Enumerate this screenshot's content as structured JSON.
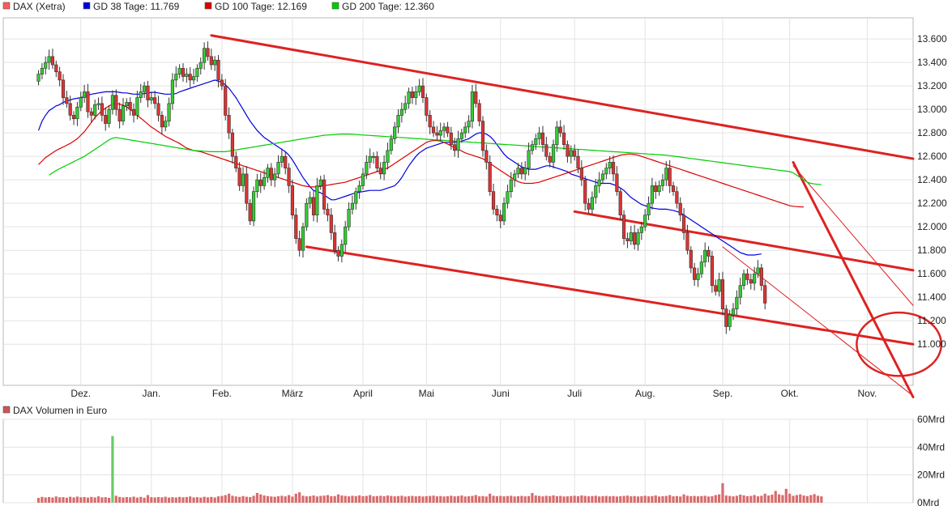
{
  "chart_data": [
    {
      "type": "candlestick",
      "legend": [
        {
          "label": "DAX (Xetra)",
          "color": "#ff5a5a"
        },
        {
          "label": "GD 38 Tage: 11.769",
          "color": "#0000dd"
        },
        {
          "label": "GD 100 Tage: 12.169",
          "color": "#dd0000"
        },
        {
          "label": "GD 200 Tage: 12.360",
          "color": "#00cc00"
        }
      ],
      "legend_position": "top-left",
      "y_ticks": [
        "13.600",
        "13.400",
        "13.200",
        "13.000",
        "12.800",
        "12.600",
        "12.400",
        "12.200",
        "12.000",
        "11.800",
        "11.600",
        "11.400",
        "11.200",
        "11.000"
      ],
      "y_tick_values": [
        13600,
        13400,
        13200,
        13000,
        12800,
        12600,
        12400,
        12200,
        12000,
        11800,
        11600,
        11400,
        11200,
        11000
      ],
      "ylim": [
        10650,
        13780
      ],
      "x_ticks": [
        "Dez.",
        "Jan.",
        "Feb.",
        "März",
        "April",
        "Mai",
        "Juni",
        "Juli",
        "Aug.",
        "Sep.",
        "Okt.",
        "Nov."
      ],
      "x_tick_pos": [
        12,
        32,
        52,
        72,
        92,
        110,
        131,
        152,
        172,
        194,
        213,
        235
      ],
      "xlim": [
        -10,
        248
      ],
      "close": [
        13300,
        13350,
        13400,
        13450,
        13380,
        13320,
        13250,
        13100,
        13050,
        12950,
        12920,
        13020,
        13100,
        13150,
        12980,
        12950,
        13040,
        13050,
        12950,
        12880,
        13000,
        13120,
        13000,
        12900,
        13030,
        13060,
        13000,
        12950,
        13100,
        13150,
        13200,
        13080,
        13100,
        13050,
        12950,
        12850,
        12900,
        13050,
        13250,
        13300,
        13350,
        13280,
        13300,
        13250,
        13280,
        13350,
        13400,
        13520,
        13450,
        13380,
        13420,
        13250,
        13200,
        12950,
        12800,
        12600,
        12500,
        12350,
        12450,
        12200,
        12050,
        12300,
        12400,
        12350,
        12420,
        12500,
        12400,
        12450,
        12550,
        12600,
        12500,
        12350,
        12100,
        11900,
        11800,
        12000,
        12200,
        12250,
        12100,
        12350,
        12400,
        12150,
        12100,
        11950,
        11800,
        11750,
        11850,
        12000,
        12150,
        12200,
        12300,
        12350,
        12450,
        12550,
        12600,
        12600,
        12500,
        12450,
        12550,
        12650,
        12750,
        12850,
        12950,
        13000,
        13050,
        13150,
        13100,
        13150,
        13200,
        13100,
        12950,
        12850,
        12800,
        12780,
        12820,
        12850,
        12800,
        12700,
        12650,
        12750,
        12800,
        12850,
        12900,
        13150,
        13050,
        12900,
        12650,
        12550,
        12300,
        12150,
        12100,
        12050,
        12200,
        12300,
        12400,
        12450,
        12500,
        12450,
        12500,
        12650,
        12700,
        12750,
        12800,
        12700,
        12600,
        12550,
        12700,
        12850,
        12800,
        12700,
        12600,
        12650,
        12600,
        12500,
        12400,
        12200,
        12150,
        12250,
        12350,
        12400,
        12450,
        12500,
        12550,
        12450,
        12300,
        12100,
        11900,
        11880,
        11950,
        11850,
        11950,
        12000,
        12100,
        12200,
        12350,
        12300,
        12350,
        12400,
        12500,
        12350,
        12300,
        12200,
        12100,
        11950,
        11800,
        11650,
        11550,
        11600,
        11700,
        11800,
        11750,
        11500,
        11450,
        11550,
        11300,
        11150,
        11250,
        11300,
        11400,
        11500,
        11600,
        11550,
        11520,
        11600,
        11650,
        11500,
        11350
      ],
      "gd38": [
        12820,
        12900,
        12950,
        12990,
        13010,
        13030,
        13040,
        13060,
        13070,
        13080,
        13090,
        13095,
        13100,
        13110,
        13120,
        13130,
        13135,
        13140,
        13145,
        13150,
        13150,
        13150,
        13150,
        13145,
        13140,
        13140,
        13135,
        13130,
        13130,
        13130,
        13135,
        13140,
        13145,
        13145,
        13140,
        13135,
        13130,
        13130,
        13130,
        13135,
        13150,
        13160,
        13170,
        13180,
        13190,
        13200,
        13210,
        13220,
        13230,
        13240,
        13250,
        13240,
        13230,
        13210,
        13180,
        13140,
        13100,
        13050,
        13000,
        12950,
        12900,
        12860,
        12820,
        12790,
        12760,
        12740,
        12720,
        12700,
        12680,
        12660,
        12640,
        12610,
        12570,
        12520,
        12470,
        12420,
        12380,
        12340,
        12310,
        12300,
        12290,
        12270,
        12250,
        12230,
        12230,
        12240,
        12250,
        12260,
        12270,
        12280,
        12290,
        12295,
        12300,
        12305,
        12310,
        12310,
        12310,
        12310,
        12320,
        12330,
        12340,
        12350,
        12380,
        12420,
        12470,
        12520,
        12560,
        12600,
        12630,
        12650,
        12670,
        12680,
        12690,
        12700,
        12710,
        12720,
        12720,
        12720,
        12720,
        12720,
        12730,
        12740,
        12750,
        12770,
        12790,
        12800,
        12800,
        12790,
        12770,
        12740,
        12700,
        12660,
        12620,
        12590,
        12570,
        12550,
        12530,
        12510,
        12500,
        12490,
        12490,
        12490,
        12500,
        12510,
        12520,
        12520,
        12510,
        12500,
        12490,
        12480,
        12470,
        12450,
        12440,
        12430,
        12420,
        12410,
        12400,
        12390,
        12380,
        12370,
        12370,
        12370,
        12370,
        12360,
        12350,
        12330,
        12310,
        12280,
        12250,
        12230,
        12210,
        12190,
        12180,
        12170,
        12160,
        12155,
        12150,
        12150,
        12150,
        12145,
        12140,
        12130,
        12120,
        12100,
        12080,
        12060,
        12040,
        12020,
        12000,
        11980,
        11960,
        11940,
        11920,
        11900,
        11880,
        11860,
        11840,
        11820,
        11800,
        11780,
        11770,
        11760,
        11760,
        11760,
        11765,
        11769
      ],
      "gd100": [
        12530,
        12560,
        12590,
        12610,
        12630,
        12650,
        12665,
        12680,
        12695,
        12710,
        12730,
        12750,
        12780,
        12810,
        12850,
        12890,
        12930,
        12960,
        12990,
        13010,
        13030,
        13045,
        13050,
        13045,
        13035,
        13020,
        13000,
        12975,
        12950,
        12925,
        12900,
        12875,
        12850,
        12830,
        12810,
        12790,
        12770,
        12755,
        12740,
        12725,
        12710,
        12690,
        12670,
        12660,
        12650,
        12645,
        12640,
        12630,
        12620,
        12610,
        12600,
        12590,
        12580,
        12570,
        12560,
        12550,
        12540,
        12530,
        12520,
        12510,
        12500,
        12490,
        12480,
        12470,
        12460,
        12450,
        12440,
        12430,
        12420,
        12410,
        12400,
        12390,
        12380,
        12370,
        12360,
        12350,
        12345,
        12340,
        12340,
        12340,
        12345,
        12350,
        12355,
        12360,
        12365,
        12370,
        12375,
        12380,
        12390,
        12400,
        12410,
        12420,
        12430,
        12440,
        12450,
        12460,
        12470,
        12480,
        12490,
        12500,
        12520,
        12540,
        12560,
        12580,
        12600,
        12620,
        12640,
        12660,
        12680,
        12700,
        12720,
        12730,
        12735,
        12735,
        12730,
        12720,
        12705,
        12690,
        12675,
        12660,
        12645,
        12630,
        12620,
        12610,
        12600,
        12590,
        12580,
        12560,
        12540,
        12520,
        12500,
        12480,
        12460,
        12440,
        12420,
        12400,
        12385,
        12375,
        12370,
        12370,
        12370,
        12375,
        12380,
        12390,
        12400,
        12410,
        12420,
        12430,
        12440,
        12450,
        12460,
        12470,
        12480,
        12490,
        12500,
        12510,
        12520,
        12530,
        12540,
        12550,
        12560,
        12570,
        12580,
        12590,
        12600,
        12610,
        12615,
        12620,
        12620,
        12615,
        12610,
        12600,
        12590,
        12580,
        12570,
        12560,
        12550,
        12540,
        12530,
        12520,
        12510,
        12500,
        12490,
        12480,
        12470,
        12460,
        12450,
        12440,
        12430,
        12420,
        12410,
        12400,
        12390,
        12380,
        12370,
        12360,
        12350,
        12340,
        12330,
        12320,
        12310,
        12300,
        12290,
        12280,
        12270,
        12260,
        12250,
        12240,
        12230,
        12220,
        12210,
        12200,
        12190,
        12180,
        12175,
        12172,
        12170,
        12169
      ],
      "gd200": [
        12380,
        12400,
        12420,
        12440,
        12460,
        12480,
        12495,
        12510,
        12525,
        12540,
        12555,
        12570,
        12585,
        12600,
        12620,
        12640,
        12660,
        12680,
        12700,
        12720,
        12740,
        12755,
        12760,
        12755,
        12750,
        12745,
        12740,
        12735,
        12730,
        12725,
        12720,
        12715,
        12710,
        12705,
        12700,
        12695,
        12690,
        12685,
        12680,
        12675,
        12670,
        12665,
        12660,
        12655,
        12650,
        12648,
        12646,
        12644,
        12642,
        12640,
        12640,
        12640,
        12640,
        12640,
        12645,
        12650,
        12655,
        12660,
        12665,
        12670,
        12675,
        12680,
        12685,
        12690,
        12695,
        12700,
        12705,
        12710,
        12715,
        12720,
        12725,
        12730,
        12735,
        12740,
        12745,
        12750,
        12755,
        12760,
        12765,
        12770,
        12775,
        12780,
        12782,
        12784,
        12786,
        12788,
        12790,
        12790,
        12790,
        12788,
        12786,
        12784,
        12782,
        12780,
        12778,
        12776,
        12774,
        12772,
        12770,
        12768,
        12766,
        12764,
        12762,
        12760,
        12758,
        12756,
        12754,
        12752,
        12750,
        12748,
        12746,
        12744,
        12742,
        12740,
        12738,
        12736,
        12734,
        12732,
        12730,
        12728,
        12726,
        12724,
        12722,
        12720,
        12718,
        12716,
        12714,
        12712,
        12710,
        12708,
        12706,
        12704,
        12702,
        12700,
        12698,
        12696,
        12694,
        12692,
        12690,
        12688,
        12686,
        12684,
        12682,
        12680,
        12678,
        12676,
        12674,
        12672,
        12670,
        12668,
        12666,
        12664,
        12662,
        12660,
        12658,
        12656,
        12654,
        12652,
        12650,
        12648,
        12646,
        12644,
        12642,
        12640,
        12638,
        12636,
        12634,
        12632,
        12630,
        12628,
        12626,
        12624,
        12622,
        12620,
        12618,
        12616,
        12614,
        12612,
        12610,
        12606,
        12602,
        12598,
        12594,
        12590,
        12586,
        12582,
        12578,
        12574,
        12570,
        12566,
        12562,
        12558,
        12554,
        12550,
        12546,
        12542,
        12538,
        12534,
        12530,
        12526,
        12522,
        12518,
        12514,
        12510,
        12506,
        12502,
        12498,
        12494,
        12490,
        12486,
        12482,
        12478,
        12474,
        12470,
        12460,
        12440,
        12420,
        12400,
        12380,
        12370,
        12365,
        12362,
        12360
      ],
      "gd_start": [
        0,
        0,
        3
      ],
      "trend_lines": [
        {
          "from": [
            49,
            13630
          ],
          "to": [
            248,
            12580
          ],
          "width": 3
        },
        {
          "from": [
            76,
            11830
          ],
          "to": [
            248,
            11000
          ],
          "width": 3
        },
        {
          "from": [
            152,
            12130
          ],
          "to": [
            248,
            11630
          ],
          "width": 3
        },
        {
          "from": [
            214,
            12550
          ],
          "to": [
            248,
            10550
          ],
          "width": 3
        },
        {
          "from": [
            214,
            12520
          ],
          "to": [
            248,
            11330
          ],
          "width": 1
        },
        {
          "from": [
            194,
            11830
          ],
          "to": [
            248,
            10560
          ],
          "width": 1
        }
      ],
      "trend_color": "#dd2222",
      "ellipse": {
        "center": [
          244,
          11000
        ],
        "rx": 12,
        "ry": 270
      }
    },
    {
      "type": "bar",
      "legend": [
        {
          "label": "DAX Volumen in Euro",
          "color": "#cc5555"
        }
      ],
      "legend_position": "top-left",
      "y_ticks": [
        "60Mrd",
        "40Mrd",
        "20Mrd",
        "0Mrd"
      ],
      "y_tick_values": [
        60,
        40,
        20,
        0
      ],
      "ylim": [
        0,
        60
      ],
      "values": [
        3.5,
        4.2,
        3.8,
        4.1,
        3.7,
        4.5,
        3.9,
        4.0,
        3.6,
        4.3,
        3.8,
        4.4,
        3.9,
        4.1,
        3.7,
        4.2,
        3.8,
        4.6,
        3.9,
        4.0,
        3.5,
        48.0,
        5.0,
        4.2,
        3.8,
        4.1,
        3.9,
        4.4,
        3.7,
        4.2,
        3.6,
        5.5,
        4.0,
        3.8,
        4.1,
        3.9,
        4.3,
        3.7,
        4.0,
        3.8,
        4.2,
        3.9,
        4.1,
        4.5,
        3.8,
        4.0,
        3.7,
        4.3,
        3.9,
        4.2,
        3.8,
        4.6,
        4.9,
        5.5,
        6.5,
        5.0,
        4.5,
        4.2,
        4.8,
        4.3,
        4.1,
        5.0,
        7.0,
        6.0,
        5.2,
        4.8,
        4.5,
        4.3,
        4.7,
        5.0,
        4.6,
        5.5,
        4.4,
        6.5,
        7.5,
        5.0,
        4.6,
        4.8,
        5.2,
        4.5,
        4.9,
        5.1,
        5.5,
        4.7,
        4.8,
        6.0,
        5.2,
        4.9,
        4.6,
        5.0,
        4.8,
        5.3,
        4.7,
        4.9,
        5.5,
        4.6,
        4.8,
        5.0,
        4.7,
        5.2,
        4.9,
        4.6,
        4.8,
        5.0,
        4.5,
        4.7,
        4.9,
        4.6,
        4.8,
        4.5,
        4.7,
        4.9,
        5.1,
        4.6,
        4.8,
        4.5,
        4.7,
        5.0,
        4.6,
        4.8,
        5.2,
        4.5,
        4.7,
        4.9,
        5.5,
        4.6,
        4.8,
        4.5,
        6.5,
        5.0,
        4.7,
        4.9,
        4.6,
        4.8,
        5.0,
        4.5,
        4.7,
        4.9,
        4.6,
        4.8,
        7.0,
        5.2,
        4.9,
        4.6,
        5.0,
        4.8,
        5.3,
        4.7,
        4.9,
        4.5,
        4.6,
        4.8,
        5.0,
        4.7,
        5.2,
        4.9,
        4.6,
        4.8,
        5.0,
        4.5,
        4.7,
        4.9,
        4.6,
        4.8,
        4.5,
        4.7,
        4.9,
        5.1,
        4.6,
        4.8,
        4.5,
        4.7,
        5.0,
        4.6,
        4.8,
        5.2,
        4.5,
        4.7,
        4.9,
        5.5,
        4.6,
        4.8,
        4.5,
        6.0,
        5.0,
        4.7,
        4.9,
        4.6,
        4.8,
        5.0,
        4.5,
        4.7,
        5.5,
        6.0,
        14.0,
        5.2,
        4.9,
        4.6,
        5.0,
        5.8,
        5.3,
        4.7,
        4.9,
        5.5,
        4.6,
        5.0,
        6.5,
        5.2,
        5.8,
        8.5,
        6.0,
        5.5,
        10.0,
        6.5,
        5.0,
        5.5,
        6.0,
        5.2,
        4.8,
        5.5,
        6.2,
        5.0,
        4.6
      ],
      "color": "#d96b6b",
      "highlight_index": 21,
      "highlight_color": "#66cc66"
    }
  ]
}
